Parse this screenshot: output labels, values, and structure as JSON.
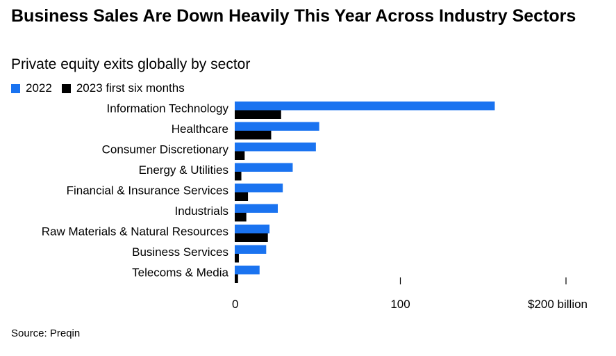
{
  "header": {
    "title": "Business Sales Are Down Heavily This Year Across Industry Sectors",
    "subtitle": "Private equity exits globally by sector"
  },
  "legend": {
    "items": [
      {
        "label": "2022",
        "color": "#1a73f0"
      },
      {
        "label": "2023 first six months",
        "color": "#000000"
      }
    ]
  },
  "footer": {
    "source": "Source: Preqin"
  },
  "chart_data": {
    "type": "bar",
    "orientation": "horizontal",
    "categories": [
      "Information Technology",
      "Healthcare",
      "Consumer Discretionary",
      "Energy & Utilities",
      "Financial & Insurance Services",
      "Industrials",
      "Raw Materials & Natural Resources",
      "Business Services",
      "Telecoms & Media"
    ],
    "series": [
      {
        "name": "2022",
        "color": "#1a73f0",
        "values": [
          157,
          51,
          49,
          35,
          29,
          26,
          21,
          19,
          15
        ]
      },
      {
        "name": "2023 first six months",
        "color": "#000000",
        "values": [
          28,
          22,
          6,
          4,
          8,
          7,
          20,
          2.5,
          2
        ]
      }
    ],
    "x_ticks": [
      {
        "value": 0,
        "label": "0"
      },
      {
        "value": 100,
        "label": "100"
      },
      {
        "value": 200,
        "label": "$200 billion"
      }
    ],
    "xlim": [
      0,
      200
    ],
    "grid": false,
    "legend_position": "top-left"
  }
}
